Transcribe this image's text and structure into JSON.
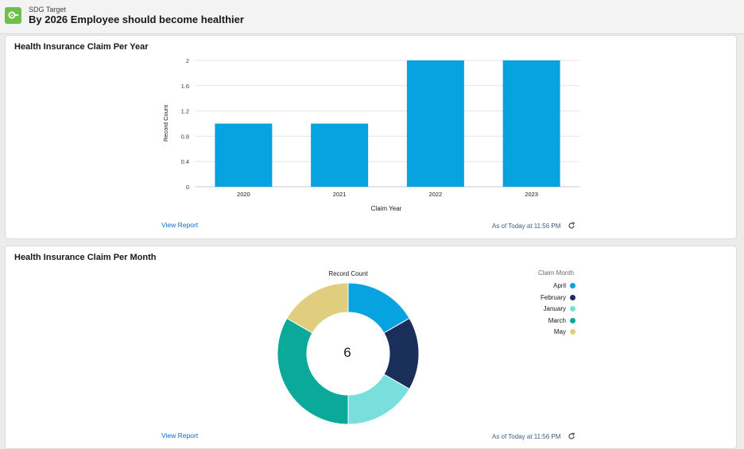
{
  "header": {
    "object_type": "SDG Target",
    "title": "By 2026 Employee should become healthier",
    "icon": "target-icon",
    "icon_color": "#6fbf4a"
  },
  "card_year": {
    "title": "Health Insurance Claim Per Year",
    "view_report": "View Report",
    "as_of": "As of Today at 11:56 PM"
  },
  "card_month": {
    "title": "Health Insurance Claim Per Month",
    "view_report": "View Report",
    "as_of": "As of Today at 11:56 PM",
    "total": "6",
    "measure_label": "Record Count",
    "legend_title": "Claim Month"
  },
  "chart_data": [
    {
      "type": "bar",
      "categories": [
        "2020",
        "2021",
        "2022",
        "2023"
      ],
      "values": [
        1,
        1,
        2,
        2
      ],
      "xlabel": "Claim Year",
      "ylabel": "Record Count",
      "ylim": [
        0,
        2
      ],
      "yticks": [
        "0",
        "0.4",
        "0.8",
        "1.2",
        "1.6",
        "2"
      ],
      "color": "#06a3e0",
      "grid": true
    },
    {
      "type": "pie",
      "variant": "donut",
      "categories": [
        "April",
        "February",
        "January",
        "March",
        "May"
      ],
      "values": [
        1,
        1,
        1,
        2,
        1
      ],
      "colors": [
        "#06a3e0",
        "#1b2f5b",
        "#78dfdc",
        "#0ba99a",
        "#e1cd7e"
      ],
      "slice_order": [
        "April",
        "February",
        "January",
        "March",
        "May"
      ],
      "legend_position": "right"
    }
  ]
}
